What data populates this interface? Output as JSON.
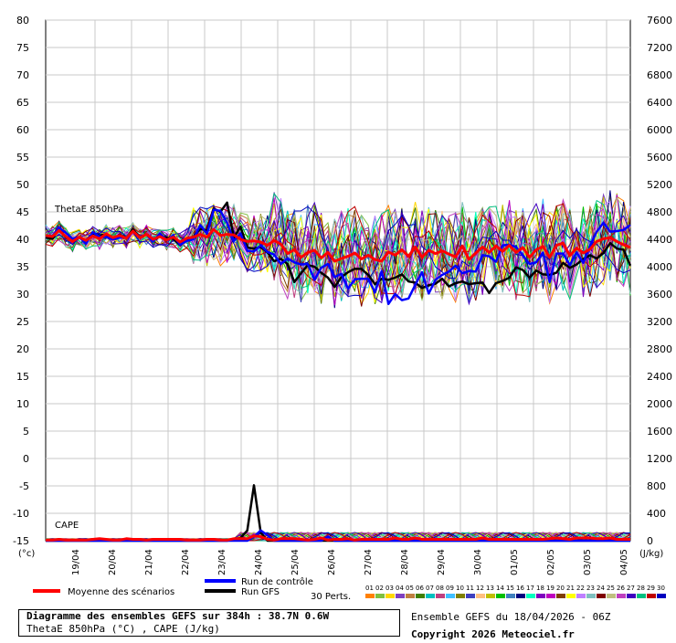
{
  "chart_data": {
    "type": "line",
    "title": "Diagramme des ensembles GEFS sur 384h : 38.7N 0.6W",
    "subtitle": "ThetaE 850hPa (°C) , CAPE (J/kg)",
    "left_axis": {
      "unit_label": "(°c)",
      "range": [
        -15,
        80
      ],
      "ticks": [
        80,
        75,
        70,
        65,
        60,
        55,
        50,
        45,
        40,
        35,
        30,
        25,
        20,
        15,
        10,
        5,
        0,
        -5,
        -10,
        -15
      ]
    },
    "right_axis": {
      "unit_label": "(J/kg)",
      "range": [
        0,
        7600
      ],
      "ticks": [
        7600,
        7200,
        6800,
        6400,
        6000,
        5600,
        5200,
        4800,
        4400,
        4000,
        3600,
        3200,
        2800,
        2400,
        2000,
        1600,
        1200,
        800,
        400,
        0
      ]
    },
    "x_labels": [
      "19/04",
      "20/04",
      "21/04",
      "22/04",
      "23/04",
      "24/04",
      "25/04",
      "26/04",
      "27/04",
      "28/04",
      "29/04",
      "30/04",
      "01/05",
      "02/05",
      "03/05",
      "04/05"
    ],
    "panel_labels": {
      "thetae": "ThetaE 850hPa",
      "cape": "CAPE"
    },
    "series": [
      {
        "name": "Moyenne des scénarios",
        "color": "#ff0000",
        "thetae": [
          40.7,
          40.5,
          41.6,
          40.5,
          39.6,
          40.4,
          39.8,
          40.6,
          40.1,
          41.0,
          40.3,
          40.7,
          40.2,
          41.5,
          40.3,
          40.9,
          40.0,
          40.5,
          39.9,
          40.4,
          39.5,
          40.2,
          40.4,
          40.9,
          40.4,
          41.8,
          40.7,
          40.9,
          40.8,
          40.0,
          39.6,
          39.7,
          39.5,
          38.9,
          39.8,
          39.1,
          37.4,
          38.1,
          36.7,
          37.6,
          38.0,
          36.6,
          37.6,
          36.0,
          36.5,
          36.9,
          37.5,
          36.4,
          37.1,
          36.3,
          36.0,
          37.7,
          37.1,
          38.1,
          36.9,
          38.6,
          36.7,
          38.0,
          37.4,
          37.9,
          37.3,
          36.8,
          38.8,
          36.3,
          37.5,
          38.6,
          37.6,
          38.8,
          37.8,
          38.9,
          37.6,
          38.5,
          36.7,
          38.1,
          38.7,
          36.7,
          38.9,
          39.3,
          37.0,
          38.4,
          37.5,
          38.2,
          39.6,
          40.1,
          40.3,
          39.6,
          39.0,
          38.5
        ],
        "cape": [
          10,
          10,
          20,
          10,
          10,
          10,
          10,
          20,
          30,
          20,
          10,
          10,
          30,
          20,
          20,
          10,
          20,
          20,
          20,
          20,
          20,
          10,
          10,
          10,
          20,
          20,
          10,
          10,
          30,
          30,
          30,
          70,
          60,
          20,
          10,
          30,
          30,
          30,
          20,
          10,
          20,
          40,
          10,
          20,
          20,
          30,
          10,
          20,
          20,
          20,
          20,
          20,
          40,
          20,
          20,
          40,
          20,
          20,
          20,
          20,
          20,
          20,
          20,
          20,
          20,
          40,
          20,
          20,
          20,
          20,
          20,
          20,
          20,
          20,
          20,
          30,
          40,
          30,
          20,
          40,
          40,
          40,
          30,
          30,
          40,
          20,
          20,
          20
        ]
      },
      {
        "name": "Run de contrôle",
        "color": "#0000ff",
        "thetae": [
          40.6,
          40.6,
          42.1,
          41.2,
          40.1,
          40.4,
          39.2,
          41.3,
          40.5,
          40.4,
          40.0,
          40.3,
          40.4,
          41.5,
          40.4,
          40.9,
          39.6,
          41.1,
          39.8,
          40.7,
          39.0,
          39.7,
          40.0,
          42.6,
          41.0,
          45.4,
          45.2,
          43.0,
          39.7,
          41.1,
          37.9,
          37.8,
          38.9,
          37.7,
          37.2,
          35.5,
          36.5,
          35.8,
          35.4,
          35.5,
          32.6,
          34.8,
          35.5,
          33.1,
          33.7,
          31.0,
          32.7,
          32.8,
          32.8,
          30.3,
          34.2,
          28.2,
          30.0,
          28.9,
          29.2,
          31.7,
          34.0,
          30.1,
          32.6,
          33.5,
          34.1,
          35.2,
          33.8,
          34.2,
          34.1,
          37.1,
          36.9,
          35.9,
          38.9,
          39.0,
          38.6,
          37.1,
          35.5,
          35.8,
          37.6,
          32.2,
          37.4,
          37.4,
          35.3,
          37.6,
          35.7,
          38.8,
          41.4,
          43.0,
          41.4,
          41.5,
          41.7,
          42.6
        ],
        "cape": [
          0,
          0,
          0,
          0,
          0,
          0,
          0,
          0,
          0,
          0,
          0,
          0,
          0,
          0,
          0,
          0,
          0,
          0,
          0,
          0,
          0,
          0,
          0,
          0,
          0,
          0,
          0,
          0,
          0,
          0,
          0,
          60,
          150,
          80,
          0,
          0,
          0,
          0,
          0,
          0,
          0,
          0,
          60,
          0,
          0,
          0,
          0,
          0,
          0,
          0,
          0,
          0,
          0,
          0,
          0,
          0,
          0,
          0,
          0,
          0,
          0,
          0,
          0,
          0,
          0,
          0,
          0,
          0,
          0,
          0,
          0,
          0,
          0,
          0,
          0,
          0,
          0,
          0,
          0,
          0,
          0,
          0,
          0,
          0,
          0,
          0,
          0,
          0
        ]
      },
      {
        "name": "Run GFS",
        "color": "#000000",
        "thetae": [
          40.3,
          40.1,
          42.0,
          40.3,
          39.8,
          40.4,
          39.4,
          41.1,
          40.7,
          40.9,
          40.1,
          40.8,
          40.3,
          41.8,
          40.4,
          40.9,
          39.7,
          40.6,
          40.3,
          40.1,
          38.9,
          39.9,
          40.5,
          41.9,
          41.6,
          45.6,
          45.0,
          46.7,
          40.3,
          42.3,
          38.5,
          38.3,
          38.6,
          37.6,
          36.0,
          36.4,
          35.5,
          32.2,
          33.8,
          35.3,
          35.0,
          33.9,
          33.0,
          31.3,
          33.1,
          34.0,
          34.6,
          34.6,
          33.5,
          31.8,
          32.8,
          32.6,
          33.0,
          33.6,
          32.3,
          32.1,
          31.1,
          31.6,
          31.9,
          32.8,
          31.4,
          32.0,
          32.3,
          31.8,
          32.0,
          32.1,
          30.2,
          32.0,
          32.4,
          33.0,
          34.9,
          34.4,
          33.0,
          34.3,
          33.6,
          33.5,
          33.9,
          35.7,
          34.8,
          35.4,
          36.4,
          37.1,
          36.5,
          37.5,
          39.3,
          38.3,
          38.1,
          35.2
        ],
        "cape": [
          0,
          0,
          0,
          0,
          0,
          0,
          0,
          0,
          0,
          0,
          0,
          0,
          0,
          0,
          0,
          0,
          0,
          0,
          0,
          0,
          0,
          0,
          0,
          0,
          0,
          0,
          0,
          0,
          20,
          40,
          150,
          810,
          120,
          0,
          0,
          0,
          0,
          0,
          0,
          0,
          0,
          0,
          0,
          0,
          0,
          0,
          0,
          0,
          0,
          0,
          0,
          0,
          0,
          0,
          0,
          0,
          0,
          0,
          0,
          0,
          0,
          0,
          0,
          0,
          0,
          0,
          0,
          0,
          0,
          0,
          0,
          0,
          0,
          0,
          0,
          0,
          0,
          0,
          0,
          0,
          0,
          0,
          0,
          0,
          0,
          0,
          0,
          0
        ]
      }
    ],
    "perturbations": {
      "label": "30 Perts.",
      "ids": [
        "01",
        "02",
        "03",
        "04",
        "05",
        "06",
        "07",
        "08",
        "09",
        "10",
        "11",
        "12",
        "13",
        "14",
        "15",
        "16",
        "17",
        "18",
        "19",
        "20",
        "21",
        "22",
        "23",
        "24",
        "25",
        "26",
        "27",
        "28",
        "29",
        "30"
      ],
      "colors": [
        "#ff8000",
        "#7fbf3f",
        "#ffd700",
        "#7f3fbf",
        "#bf7f3f",
        "#3f7f00",
        "#00bfbf",
        "#bf3f7f",
        "#3fbfff",
        "#7f7f00",
        "#3f3fbf",
        "#ffbf7f",
        "#bfbf00",
        "#00bf00",
        "#3f7fbf",
        "#00007f",
        "#00ffbf",
        "#7f00bf",
        "#bf00bf",
        "#7f3f00",
        "#ffff00",
        "#bf7fff",
        "#7fbfbf",
        "#7f0000",
        "#bfbf7f",
        "#bf3fbf",
        "#3f00bf",
        "#00bf7f",
        "#bf0000",
        "#0000bf"
      ]
    },
    "legend": {
      "mean": "Moyenne des scénarios",
      "control": "Run de contrôle",
      "gfs": "Run GFS"
    }
  },
  "info_box": {
    "line1": "Diagramme des ensembles GEFS sur 384h : 38.7N 0.6W",
    "line2": "ThetaE 850hPa (°C) , CAPE (J/kg)"
  },
  "run_info": {
    "line1": "Ensemble GEFS du 18/04/2026 - 06Z",
    "line2": "Copyright 2026 Meteociel.fr"
  }
}
